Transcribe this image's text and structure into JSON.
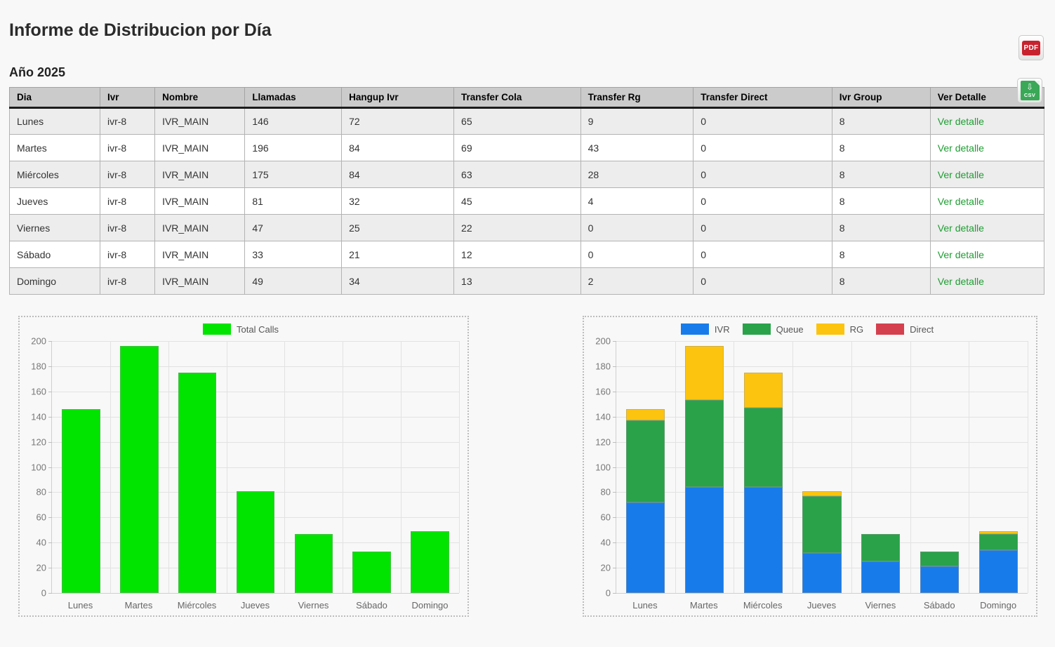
{
  "page": {
    "title": "Informe de Distribucion por Día",
    "subtitle": "Año 2025"
  },
  "toolbar": {
    "pdf_label": "PDF",
    "csv_label": "CSV",
    "csv_arrow": "⇩"
  },
  "table": {
    "columns": [
      "Dia",
      "Ivr",
      "Nombre",
      "Llamadas",
      "Hangup Ivr",
      "Transfer Cola",
      "Transfer Rg",
      "Transfer Direct",
      "Ivr Group",
      "Ver Detalle"
    ],
    "detail_label": "Ver detalle",
    "rows": [
      {
        "dia": "Lunes",
        "ivr": "ivr-8",
        "nombre": "IVR_MAIN",
        "llamadas": 146,
        "hangup_ivr": 72,
        "transfer_cola": 65,
        "transfer_rg": 9,
        "transfer_direct": 0,
        "ivr_group": 8
      },
      {
        "dia": "Martes",
        "ivr": "ivr-8",
        "nombre": "IVR_MAIN",
        "llamadas": 196,
        "hangup_ivr": 84,
        "transfer_cola": 69,
        "transfer_rg": 43,
        "transfer_direct": 0,
        "ivr_group": 8
      },
      {
        "dia": "Miércoles",
        "ivr": "ivr-8",
        "nombre": "IVR_MAIN",
        "llamadas": 175,
        "hangup_ivr": 84,
        "transfer_cola": 63,
        "transfer_rg": 28,
        "transfer_direct": 0,
        "ivr_group": 8
      },
      {
        "dia": "Jueves",
        "ivr": "ivr-8",
        "nombre": "IVR_MAIN",
        "llamadas": 81,
        "hangup_ivr": 32,
        "transfer_cola": 45,
        "transfer_rg": 4,
        "transfer_direct": 0,
        "ivr_group": 8
      },
      {
        "dia": "Viernes",
        "ivr": "ivr-8",
        "nombre": "IVR_MAIN",
        "llamadas": 47,
        "hangup_ivr": 25,
        "transfer_cola": 22,
        "transfer_rg": 0,
        "transfer_direct": 0,
        "ivr_group": 8
      },
      {
        "dia": "Sábado",
        "ivr": "ivr-8",
        "nombre": "IVR_MAIN",
        "llamadas": 33,
        "hangup_ivr": 21,
        "transfer_cola": 12,
        "transfer_rg": 0,
        "transfer_direct": 0,
        "ivr_group": 8
      },
      {
        "dia": "Domingo",
        "ivr": "ivr-8",
        "nombre": "IVR_MAIN",
        "llamadas": 49,
        "hangup_ivr": 34,
        "transfer_cola": 13,
        "transfer_rg": 2,
        "transfer_direct": 0,
        "ivr_group": 8
      }
    ]
  },
  "colors": {
    "total_calls_green": "#00e400",
    "ivr_blue": "#187bea",
    "queue_green": "#2aa24a",
    "rg_yellow": "#fcc40f",
    "direct_red": "#d5404e",
    "detail_link_green": "#1e9e32",
    "pdf_red": "#c8222f",
    "csv_green": "#3aa857"
  },
  "chart_data": [
    {
      "type": "bar",
      "title": "",
      "categories": [
        "Lunes",
        "Martes",
        "Miércoles",
        "Jueves",
        "Viernes",
        "Sábado",
        "Domingo"
      ],
      "series": [
        {
          "name": "Total Calls",
          "color": "#00e400",
          "values": [
            146,
            196,
            175,
            81,
            47,
            33,
            49
          ]
        }
      ],
      "stacked": false,
      "ylim": [
        0,
        200
      ],
      "ytick_step": 20,
      "grid": true,
      "legend_position": "top"
    },
    {
      "type": "bar",
      "title": "",
      "categories": [
        "Lunes",
        "Martes",
        "Miércoles",
        "Jueves",
        "Viernes",
        "Sábado",
        "Domingo"
      ],
      "series": [
        {
          "name": "IVR",
          "color": "#187bea",
          "values": [
            72,
            84,
            84,
            32,
            25,
            21,
            34
          ]
        },
        {
          "name": "Queue",
          "color": "#2aa24a",
          "values": [
            65,
            69,
            63,
            45,
            22,
            12,
            13
          ]
        },
        {
          "name": "RG",
          "color": "#fcc40f",
          "values": [
            9,
            43,
            28,
            4,
            0,
            0,
            2
          ]
        },
        {
          "name": "Direct",
          "color": "#d5404e",
          "values": [
            0,
            0,
            0,
            0,
            0,
            0,
            0
          ]
        }
      ],
      "stacked": true,
      "ylim": [
        0,
        200
      ],
      "ytick_step": 20,
      "grid": true,
      "legend_position": "top"
    }
  ]
}
